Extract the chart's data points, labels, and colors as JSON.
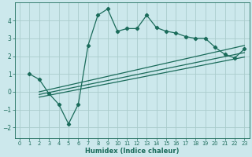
{
  "xlabel": "Humidex (Indice chaleur)",
  "bg_color": "#cce8ec",
  "grid_color": "#aacccc",
  "line_color": "#1a6b5a",
  "xlim": [
    -0.5,
    23.5
  ],
  "ylim": [
    -2.6,
    5.0
  ],
  "yticks": [
    -2,
    -1,
    0,
    1,
    2,
    3,
    4
  ],
  "xticks": [
    0,
    1,
    2,
    3,
    4,
    5,
    6,
    7,
    8,
    9,
    10,
    11,
    12,
    13,
    14,
    15,
    16,
    17,
    18,
    19,
    20,
    21,
    22,
    23
  ],
  "main_line_x": [
    1,
    2,
    3,
    4,
    5,
    6,
    7,
    8,
    9,
    10,
    11,
    12,
    13,
    14,
    15,
    16,
    17,
    18,
    19,
    20,
    21,
    22,
    23
  ],
  "main_line_y": [
    1.0,
    0.7,
    -0.1,
    -0.7,
    -1.8,
    -0.7,
    2.6,
    4.3,
    4.65,
    3.4,
    3.55,
    3.55,
    4.3,
    3.6,
    3.4,
    3.3,
    3.1,
    3.0,
    3.0,
    2.5,
    2.1,
    1.9,
    2.4
  ],
  "line2_x": [
    2,
    23
  ],
  "line2_y": [
    0.0,
    2.6
  ],
  "line3_x": [
    2,
    23
  ],
  "line3_y": [
    -0.15,
    2.2
  ],
  "line4_x": [
    2,
    23
  ],
  "line4_y": [
    -0.3,
    1.95
  ]
}
